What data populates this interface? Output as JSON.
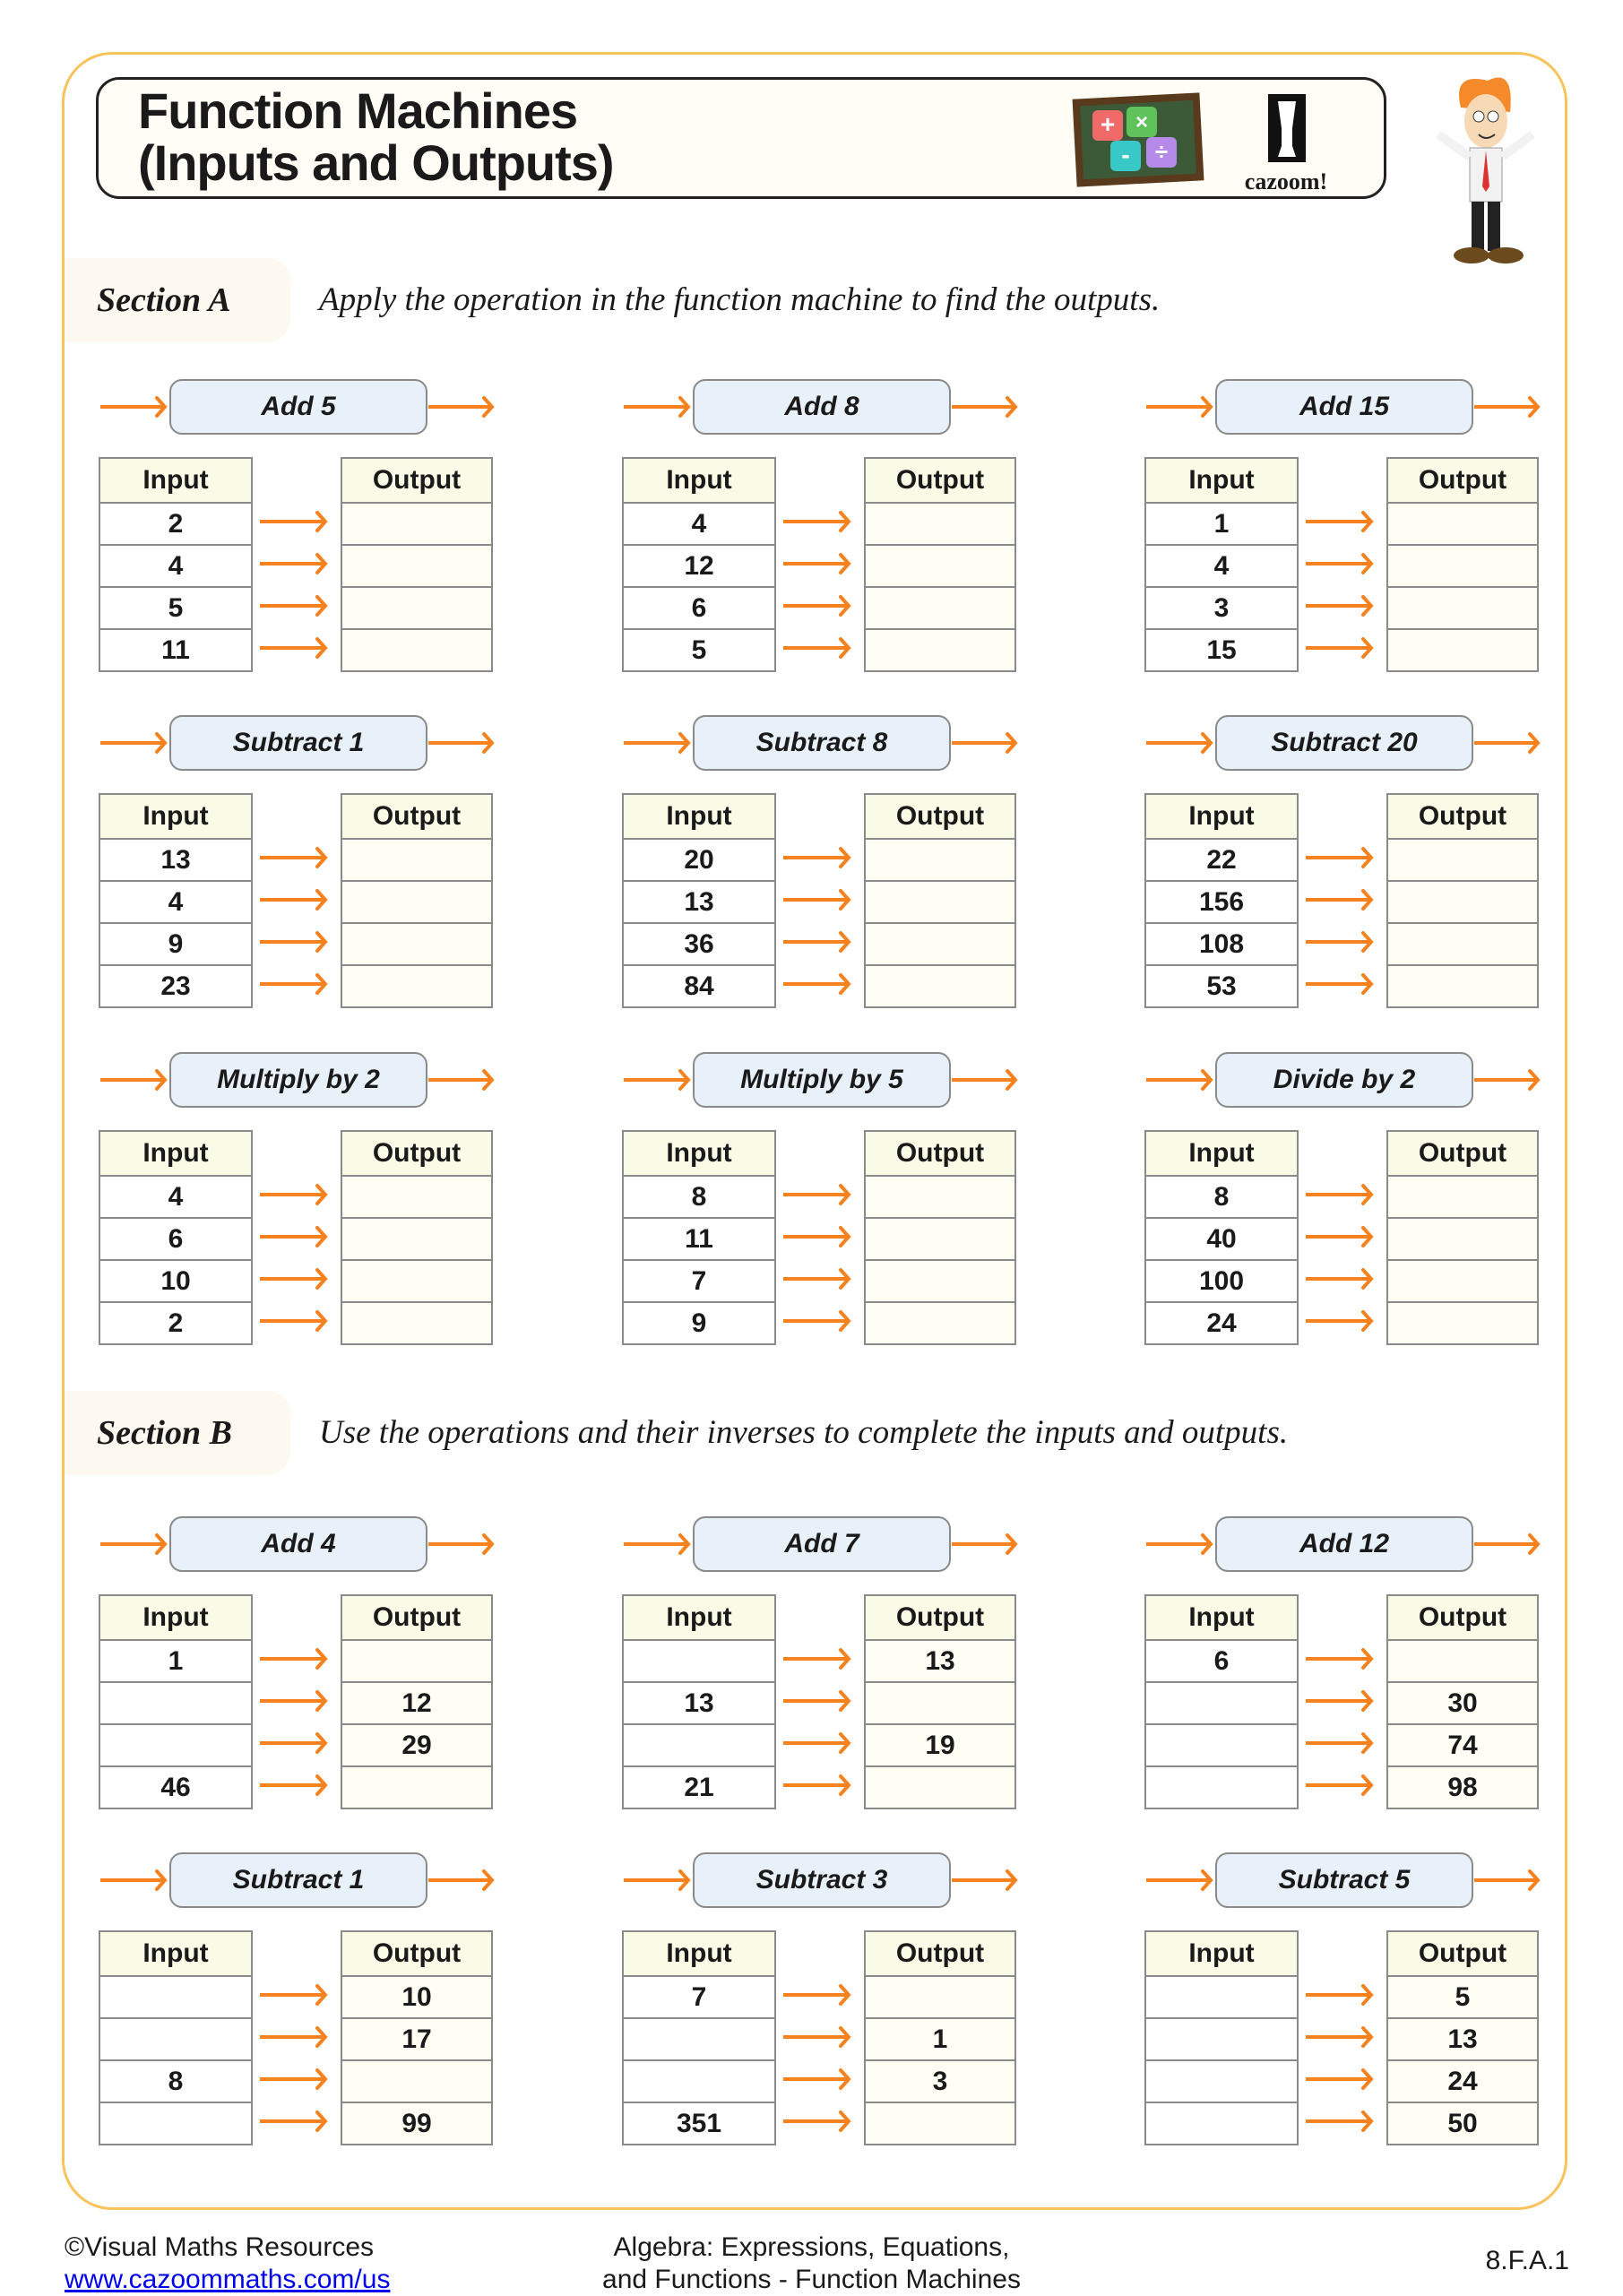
{
  "header": {
    "title_line1": "Function Machines",
    "title_line2": "(Inputs and Outputs)",
    "logo_text": "cazoom!"
  },
  "colors": {
    "accent": "#f5821f",
    "frame": "#f8c35c",
    "machine_fill": "#e8f0fa",
    "header_fill": "#fafbe6"
  },
  "table_headers": {
    "input": "Input",
    "output": "Output"
  },
  "sections": [
    {
      "label": "Section A",
      "instruction": "Apply the operation in the function machine to find the outputs.",
      "machines": [
        {
          "op": "Add 5",
          "inputs": [
            "2",
            "4",
            "5",
            "11"
          ],
          "outputs": [
            "",
            "",
            "",
            ""
          ]
        },
        {
          "op": "Add 8",
          "inputs": [
            "4",
            "12",
            "6",
            "5"
          ],
          "outputs": [
            "",
            "",
            "",
            ""
          ]
        },
        {
          "op": "Add 15",
          "inputs": [
            "1",
            "4",
            "3",
            "15"
          ],
          "outputs": [
            "",
            "",
            "",
            ""
          ]
        },
        {
          "op": "Subtract 1",
          "inputs": [
            "13",
            "4",
            "9",
            "23"
          ],
          "outputs": [
            "",
            "",
            "",
            ""
          ]
        },
        {
          "op": "Subtract 8",
          "inputs": [
            "20",
            "13",
            "36",
            "84"
          ],
          "outputs": [
            "",
            "",
            "",
            ""
          ]
        },
        {
          "op": "Subtract 20",
          "inputs": [
            "22",
            "156",
            "108",
            "53"
          ],
          "outputs": [
            "",
            "",
            "",
            ""
          ]
        },
        {
          "op": "Multiply by 2",
          "inputs": [
            "4",
            "6",
            "10",
            "2"
          ],
          "outputs": [
            "",
            "",
            "",
            ""
          ]
        },
        {
          "op": "Multiply by 5",
          "inputs": [
            "8",
            "11",
            "7",
            "9"
          ],
          "outputs": [
            "",
            "",
            "",
            ""
          ]
        },
        {
          "op": "Divide by 2",
          "inputs": [
            "8",
            "40",
            "100",
            "24"
          ],
          "outputs": [
            "",
            "",
            "",
            ""
          ]
        }
      ]
    },
    {
      "label": "Section B",
      "instruction": "Use the operations and their inverses to complete the inputs and outputs.",
      "machines": [
        {
          "op": "Add 4",
          "inputs": [
            "1",
            "",
            "",
            "46"
          ],
          "outputs": [
            "",
            "12",
            "29",
            ""
          ]
        },
        {
          "op": "Add 7",
          "inputs": [
            "",
            "13",
            "",
            "21"
          ],
          "outputs": [
            "13",
            "",
            "19",
            ""
          ]
        },
        {
          "op": "Add 12",
          "inputs": [
            "6",
            "",
            "",
            ""
          ],
          "outputs": [
            "",
            "30",
            "74",
            "98"
          ]
        },
        {
          "op": "Subtract 1",
          "inputs": [
            "",
            "",
            "8",
            ""
          ],
          "outputs": [
            "10",
            "17",
            "",
            "99"
          ]
        },
        {
          "op": "Subtract 3",
          "inputs": [
            "7",
            "",
            "",
            "351"
          ],
          "outputs": [
            "",
            "1",
            "3",
            ""
          ]
        },
        {
          "op": "Subtract 5",
          "inputs": [
            "",
            "",
            "",
            ""
          ],
          "outputs": [
            "5",
            "13",
            "24",
            "50"
          ]
        }
      ]
    }
  ],
  "footer": {
    "copyright": "©Visual Maths Resources",
    "link": "www.cazoommaths.com/us",
    "topic_line1": "Algebra: Expressions, Equations,",
    "topic_line2": "and Functions - Function Machines",
    "standard": "8.F.A.1"
  }
}
